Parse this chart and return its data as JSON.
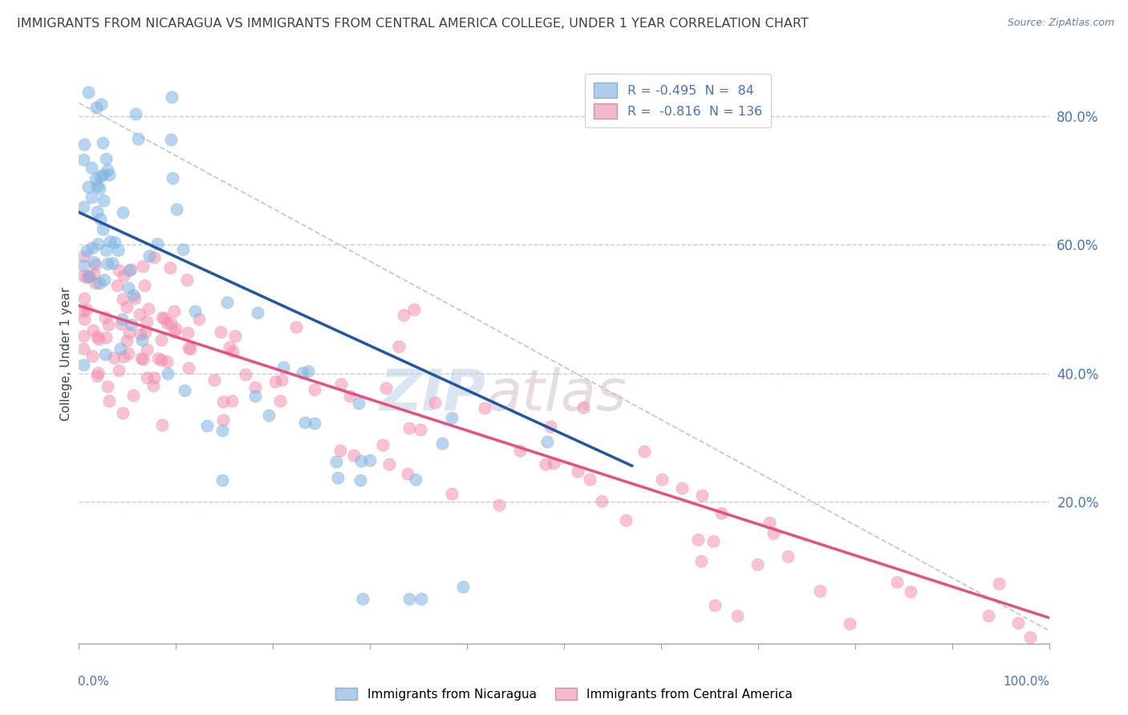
{
  "title": "IMMIGRANTS FROM NICARAGUA VS IMMIGRANTS FROM CENTRAL AMERICA COLLEGE, UNDER 1 YEAR CORRELATION CHART",
  "source": "Source: ZipAtlas.com",
  "ylabel": "College, Under 1 year",
  "y_ticks_right": [
    "80.0%",
    "60.0%",
    "40.0%",
    "20.0%"
  ],
  "y_ticks_right_vals": [
    0.8,
    0.6,
    0.4,
    0.2
  ],
  "legend1_label": "R = -0.495  N =  84",
  "legend2_label": "R =  -0.816  N = 136",
  "legend1_color": "#aecde8",
  "legend2_color": "#f4b8cc",
  "series1_color": "#7eb4e2",
  "series2_color": "#f490b0",
  "line1_color": "#2255aa",
  "line2_color": "#e8507a",
  "dashed_line_color": "#c0c8d8",
  "watermark_zip": "ZIP",
  "watermark_atlas": "atlas",
  "background_color": "#ffffff",
  "grid_color": "#c0cede",
  "title_color": "#404040",
  "axis_label_color": "#4472c4",
  "xlim": [
    0.0,
    1.0
  ],
  "ylim": [
    -0.02,
    0.88
  ]
}
